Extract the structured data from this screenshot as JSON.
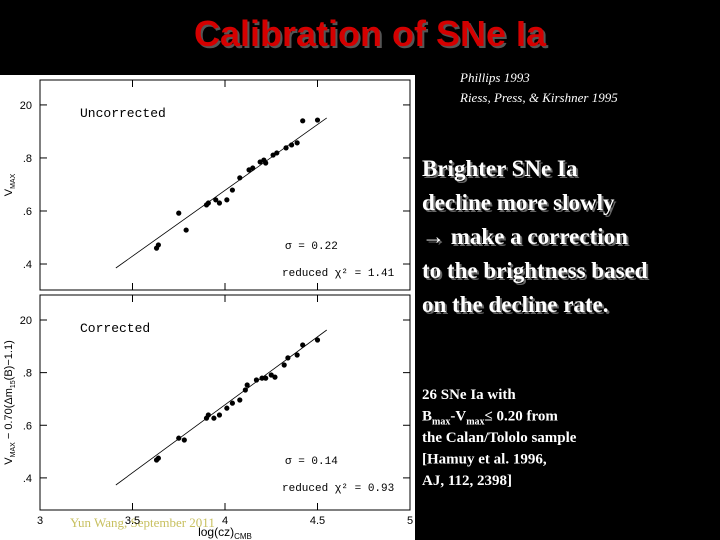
{
  "slide": {
    "title": "Calibration of SNe Ia",
    "references": [
      "Phillips 1993",
      "Riess, Press, & Kirshner 1995"
    ],
    "main_points": [
      "Brighter SNe Ia",
      "decline more slowly",
      "→ make a correction",
      "to the brightness based",
      "on the decline rate."
    ],
    "sample_note": [
      [
        "26 SNe Ia with"
      ],
      [
        "B",
        "max",
        "-V",
        "max",
        "≤ 0.20 from"
      ],
      [
        "the Calan/Tololo sample"
      ],
      [
        "[Hamuy et al. 1996,"
      ],
      [
        "AJ, 112, 2398]"
      ]
    ],
    "footer": "Yun Wang, September 2011"
  },
  "chart_data": [
    {
      "type": "scatter",
      "label": "Uncorrected",
      "annotations": [
        "σ = 0.22",
        "reduced χ² = 1.41"
      ],
      "y_label": [
        "V",
        "MAX"
      ],
      "x": [
        3.63,
        3.64,
        3.75,
        3.79,
        3.9,
        3.91,
        3.95,
        3.97,
        4.01,
        4.04,
        4.08,
        4.13,
        4.15,
        4.19,
        4.21,
        4.22,
        4.26,
        4.28,
        4.33,
        4.36,
        4.39,
        4.42,
        4.5
      ],
      "y": [
        14.6,
        14.72,
        15.92,
        15.28,
        16.23,
        16.3,
        16.42,
        16.3,
        16.42,
        16.79,
        17.25,
        17.55,
        17.62,
        17.85,
        17.92,
        17.81,
        18.11,
        18.19,
        18.38,
        18.49,
        18.57,
        19.4,
        19.43
      ],
      "fit": {
        "x": [
          3.41,
          4.55
        ],
        "y": [
          13.85,
          19.51
        ]
      },
      "xlim": [
        3,
        5
      ],
      "ylim": [
        13.02,
        20.94
      ],
      "xticks": [
        3,
        3.5,
        4,
        4.5,
        5
      ],
      "xtick_labels": false,
      "yticks": [
        {
          "value": 14,
          "label": ".4"
        },
        {
          "value": 16,
          "label": ".6"
        },
        {
          "value": 18,
          "label": ".8"
        },
        20
      ],
      "color": "#000000",
      "grid": false
    },
    {
      "type": "scatter",
      "label": "Corrected",
      "annotations": [
        "σ = 0.14",
        "reduced χ² = 0.93"
      ],
      "y_label": [
        "V",
        "MAX",
        " − 0.70(Δm",
        "15",
        "(B)−1.1)"
      ],
      "x_label": [
        "log(cz)",
        "CMB"
      ],
      "x": [
        3.63,
        3.64,
        3.75,
        3.78,
        3.9,
        3.91,
        3.94,
        3.97,
        4.01,
        4.04,
        4.08,
        4.11,
        4.12,
        4.17,
        4.2,
        4.22,
        4.25,
        4.27,
        4.32,
        4.34,
        4.39,
        4.42,
        4.5
      ],
      "y": [
        14.68,
        14.75,
        15.51,
        15.44,
        16.27,
        16.39,
        16.27,
        16.39,
        16.65,
        16.84,
        16.96,
        17.34,
        17.53,
        17.72,
        17.79,
        17.79,
        17.91,
        17.83,
        18.29,
        18.56,
        18.67,
        19.05,
        19.24
      ],
      "fit": {
        "x": [
          3.41,
          4.55
        ],
        "y": [
          13.73,
          19.62
        ]
      },
      "xlim": [
        3,
        5
      ],
      "ylim": [
        12.78,
        20.95
      ],
      "xticks": [
        3,
        3.5,
        4,
        4.5,
        5
      ],
      "xtick_labels": true,
      "yticks": [
        {
          "value": 14,
          "label": ".4"
        },
        {
          "value": 16,
          "label": ".6"
        },
        {
          "value": 18,
          "label": ".8"
        },
        20
      ],
      "color": "#000000",
      "grid": false
    }
  ]
}
